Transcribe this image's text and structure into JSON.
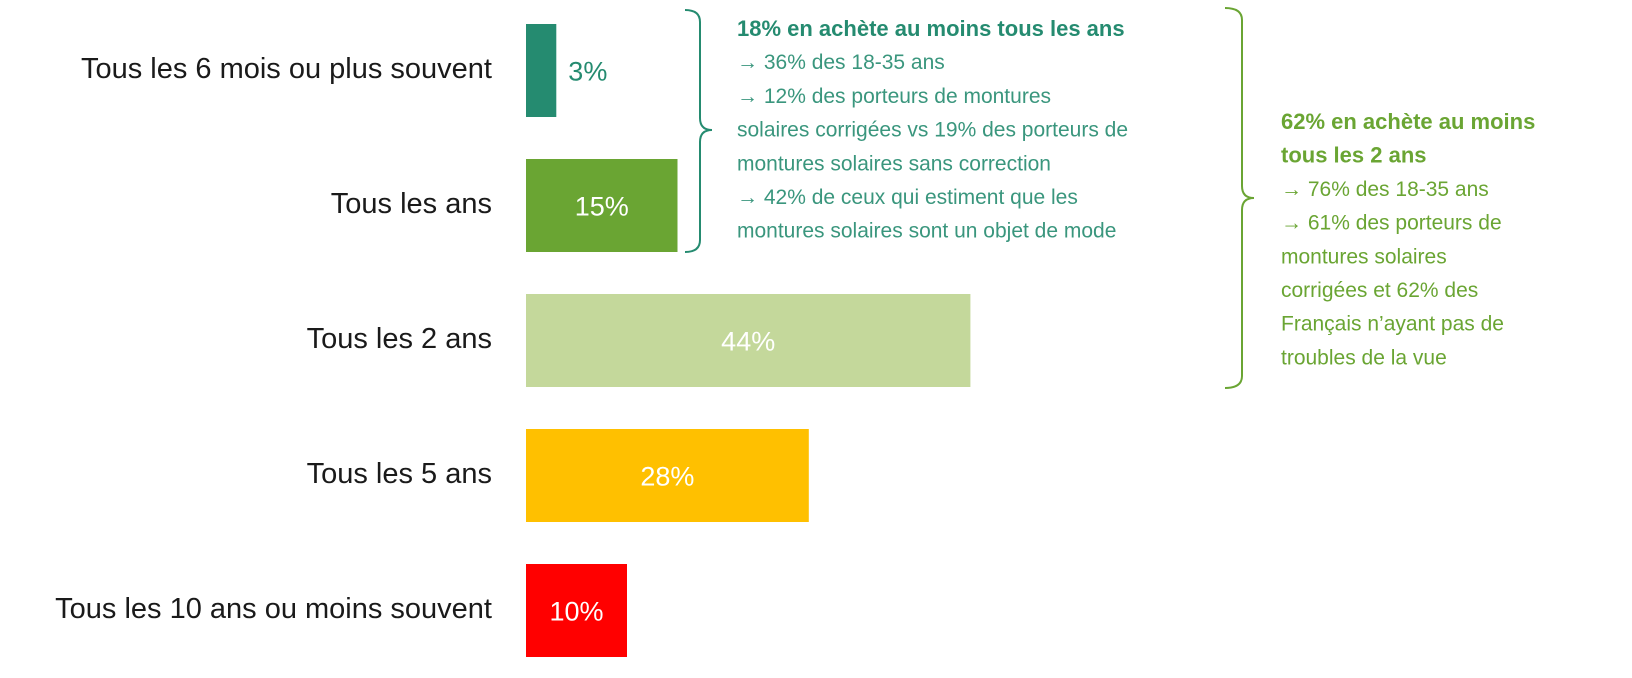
{
  "chart_data": {
    "type": "bar",
    "orientation": "horizontal",
    "categories": [
      "Tous les 6 mois ou plus souvent",
      "Tous les ans",
      "Tous les 2 ans",
      "Tous les 5 ans",
      "Tous les 10 ans ou moins souvent"
    ],
    "values": [
      3,
      15,
      44,
      28,
      10
    ],
    "value_labels": [
      "3%",
      "15%",
      "44%",
      "28%",
      "10%"
    ],
    "colors": [
      "#258b70",
      "#6aa533",
      "#c4d89b",
      "#ffc000",
      "#ff0000"
    ],
    "annotations": [
      {
        "color": "#258b70",
        "title_lines": [
          "18% en achète au moins tous les ans"
        ],
        "lines": [
          "→ 36% des 18-35 ans",
          "→ 12% des porteurs de montures",
          "solaires corrigées vs 19% des porteurs de",
          "montures solaires sans correction",
          "→ 42% de ceux qui estiment que les",
          "montures solaires sont un objet de mode"
        ]
      },
      {
        "color": "#6aa533",
        "title_lines": [
          "62% en achète au moins",
          "tous les 2 ans"
        ],
        "lines": [
          "→ 76% des 18-35 ans",
          "→ 61% des porteurs de",
          "montures solaires",
          "corrigées et 62% des",
          "Français n’ayant pas de",
          "troubles de la vue"
        ]
      }
    ]
  }
}
